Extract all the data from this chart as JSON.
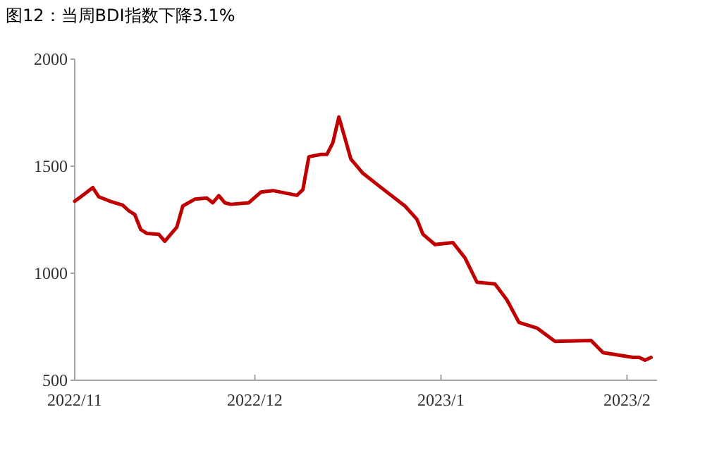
{
  "chart_data": {
    "type": "line",
    "title": "图12：当周BDI指数下降3.1%",
    "x": [
      "2022-11-01",
      "2022-11-02",
      "2022-11-04",
      "2022-11-05",
      "2022-11-07",
      "2022-11-09",
      "2022-11-10",
      "2022-11-11",
      "2022-11-12",
      "2022-11-13",
      "2022-11-15",
      "2022-11-16",
      "2022-11-18",
      "2022-11-19",
      "2022-11-21",
      "2022-11-23",
      "2022-11-24",
      "2022-11-25",
      "2022-11-26",
      "2022-11-27",
      "2022-11-30",
      "2022-12-02",
      "2022-12-04",
      "2022-12-08",
      "2022-12-09",
      "2022-12-10",
      "2022-12-12",
      "2022-12-13",
      "2022-12-14",
      "2022-12-15",
      "2022-12-16",
      "2022-12-17",
      "2022-12-19",
      "2022-12-22",
      "2022-12-26",
      "2022-12-28",
      "2022-12-29",
      "2022-12-31",
      "2023-01-03",
      "2023-01-05",
      "2023-01-07",
      "2023-01-10",
      "2023-01-12",
      "2023-01-14",
      "2023-01-17",
      "2023-01-20",
      "2023-01-26",
      "2023-01-28",
      "2023-02-02",
      "2023-02-03",
      "2023-02-04",
      "2023-02-05"
    ],
    "series": [
      {
        "color": "#c00000",
        "values": [
          1336,
          1357,
          1400,
          1357,
          1335,
          1318,
          1292,
          1274,
          1204,
          1186,
          1182,
          1149,
          1215,
          1314,
          1346,
          1351,
          1329,
          1362,
          1329,
          1322,
          1329,
          1379,
          1386,
          1364,
          1390,
          1544,
          1555,
          1555,
          1610,
          1730,
          1632,
          1533,
          1467,
          1401,
          1314,
          1252,
          1182,
          1134,
          1143,
          1072,
          958,
          950,
          875,
          770,
          744,
          682,
          686,
          629,
          607,
          607,
          594,
          607
        ]
      }
    ],
    "xlim": [
      "2022-11-01",
      "2023-02-06"
    ],
    "xticks": [
      {
        "value": "2022-11-01",
        "label": "2022/11"
      },
      {
        "value": "2022-12-01",
        "label": "2022/12"
      },
      {
        "value": "2023-01-01",
        "label": "2023/1"
      },
      {
        "value": "2023-02-01",
        "label": "2023/2"
      }
    ],
    "ylim": [
      500,
      2000
    ],
    "yticks": [
      500,
      1000,
      1500,
      2000
    ],
    "grid": false,
    "marker": "none",
    "line_style": "solid"
  }
}
